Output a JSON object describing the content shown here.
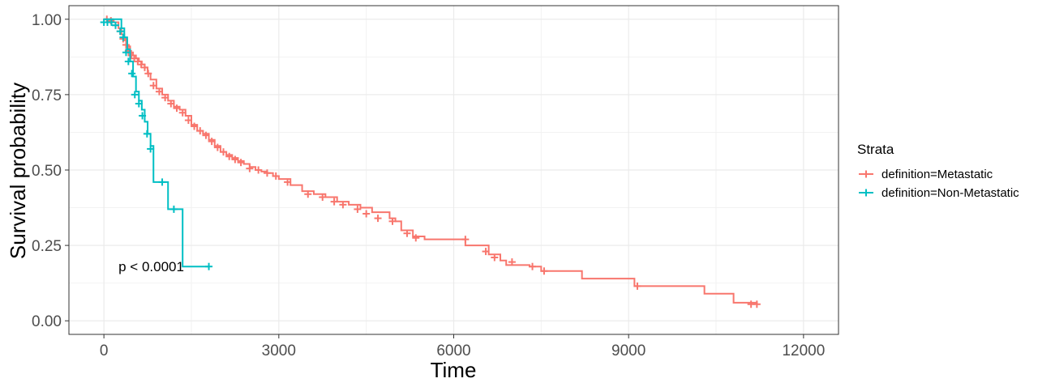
{
  "chart_data": {
    "type": "line",
    "subtype": "kaplan-meier",
    "xlabel": "Time",
    "ylabel": "Survival probability",
    "xlim": [
      -600,
      12600
    ],
    "ylim": [
      -0.045,
      1.045
    ],
    "x_ticks": [
      0,
      3000,
      6000,
      9000,
      12000
    ],
    "x_tick_labels": [
      "0",
      "3000",
      "6000",
      "9000",
      "12000"
    ],
    "y_ticks": [
      0,
      0.25,
      0.5,
      0.75,
      1
    ],
    "y_tick_labels": [
      "0.00",
      "0.25",
      "0.50",
      "0.75",
      "1.00"
    ],
    "grid": true,
    "legend": {
      "title": "Strata",
      "position": "right"
    },
    "annotation": {
      "text": "p < 0.0001",
      "x": 250,
      "y": 0.18
    },
    "series": [
      {
        "name": "definition=Metastatic",
        "color": "#F8766D",
        "x": [
          0,
          150,
          250,
          300,
          350,
          400,
          450,
          500,
          550,
          600,
          650,
          700,
          750,
          800,
          900,
          1000,
          1100,
          1200,
          1300,
          1400,
          1500,
          1600,
          1700,
          1800,
          1900,
          2000,
          2100,
          2200,
          2300,
          2400,
          2500,
          2600,
          2700,
          2800,
          2900,
          3000,
          3200,
          3400,
          3600,
          3800,
          4000,
          4200,
          4400,
          4600,
          4900,
          5000,
          5100,
          5300,
          5500,
          6000,
          6200,
          6600,
          6800,
          6900,
          7300,
          7500,
          8200,
          9100,
          10300,
          10800,
          11200
        ],
        "y": [
          1.0,
          0.99,
          0.97,
          0.95,
          0.93,
          0.91,
          0.89,
          0.88,
          0.87,
          0.86,
          0.85,
          0.84,
          0.82,
          0.8,
          0.77,
          0.75,
          0.73,
          0.71,
          0.7,
          0.68,
          0.65,
          0.63,
          0.62,
          0.6,
          0.58,
          0.56,
          0.55,
          0.54,
          0.53,
          0.52,
          0.51,
          0.5,
          0.495,
          0.49,
          0.48,
          0.47,
          0.45,
          0.43,
          0.42,
          0.41,
          0.395,
          0.385,
          0.375,
          0.36,
          0.34,
          0.33,
          0.3,
          0.28,
          0.27,
          0.27,
          0.25,
          0.22,
          0.2,
          0.185,
          0.18,
          0.165,
          0.14,
          0.115,
          0.09,
          0.06,
          0.055
        ],
        "censor_x": [
          50,
          120,
          200,
          280,
          330,
          380,
          420,
          470,
          520,
          580,
          640,
          700,
          760,
          850,
          950,
          1050,
          1150,
          1250,
          1350,
          1450,
          1550,
          1650,
          1750,
          1850,
          1950,
          2050,
          2150,
          2250,
          2350,
          2500,
          2650,
          2800,
          2950,
          3150,
          3500,
          3750,
          3950,
          4100,
          4350,
          4500,
          4700,
          4950,
          5200,
          5350,
          6200,
          6550,
          6700,
          7000,
          7350,
          7550,
          9150,
          11100,
          11200
        ],
        "censor_y": [
          1.0,
          0.995,
          0.98,
          0.96,
          0.935,
          0.915,
          0.895,
          0.88,
          0.87,
          0.86,
          0.85,
          0.84,
          0.82,
          0.78,
          0.76,
          0.74,
          0.72,
          0.705,
          0.69,
          0.665,
          0.645,
          0.63,
          0.615,
          0.595,
          0.575,
          0.56,
          0.545,
          0.535,
          0.525,
          0.505,
          0.5,
          0.49,
          0.48,
          0.46,
          0.42,
          0.41,
          0.395,
          0.385,
          0.37,
          0.355,
          0.34,
          0.33,
          0.29,
          0.275,
          0.27,
          0.23,
          0.21,
          0.195,
          0.18,
          0.165,
          0.115,
          0.055,
          0.055
        ]
      },
      {
        "name": "definition=Non-Metastatic",
        "color": "#00BFC4",
        "x": [
          0,
          300,
          350,
          400,
          450,
          500,
          550,
          600,
          650,
          700,
          750,
          800,
          850,
          1100,
          1350,
          1800
        ],
        "y": [
          1.0,
          0.97,
          0.94,
          0.9,
          0.86,
          0.81,
          0.76,
          0.73,
          0.7,
          0.66,
          0.62,
          0.58,
          0.46,
          0.37,
          0.18,
          0.18
        ],
        "censor_x": [
          0,
          60,
          130,
          200,
          280,
          330,
          380,
          420,
          480,
          530,
          600,
          660,
          740,
          800,
          1000,
          1200,
          1800
        ],
        "censor_y": [
          0.99,
          0.99,
          0.99,
          0.98,
          0.96,
          0.94,
          0.89,
          0.86,
          0.82,
          0.75,
          0.72,
          0.68,
          0.62,
          0.57,
          0.46,
          0.37,
          0.18
        ]
      }
    ]
  }
}
